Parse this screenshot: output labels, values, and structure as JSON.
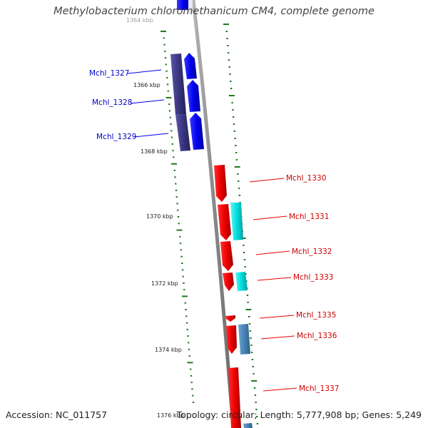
{
  "title": "Methylobacterium chloromethanicum CM4, complete genome",
  "accession_text": "Accession: NC_011757",
  "topology_text": "Topology: circular; Length: 5,777,908 bp; Genes: 5,249",
  "colors": {
    "backbone": "#8c8c8c",
    "tick": "#1e7a1e",
    "forward_gene": "#0000ee",
    "forward_dark": "#3a3680",
    "reverse_gene": "#ee0000",
    "cyan_gene": "#00dddd",
    "steelblue_gene": "#4682b4"
  },
  "scale_labels": [
    {
      "text": "1364 kbp"
    },
    {
      "text": "1366 kbp"
    },
    {
      "text": "1368 kbp"
    },
    {
      "text": "1370 kbp"
    },
    {
      "text": "1372 kbp"
    },
    {
      "text": "1374 kbp"
    },
    {
      "text": "1376 kbp"
    }
  ],
  "gene_labels": [
    {
      "text": "Mchl_1327",
      "strand": "forward"
    },
    {
      "text": "Mchl_1328",
      "strand": "forward"
    },
    {
      "text": "Mchl_1329",
      "strand": "forward"
    },
    {
      "text": "Mchl_1330",
      "strand": "reverse"
    },
    {
      "text": "Mchl_1331",
      "strand": "reverse"
    },
    {
      "text": "Mchl_1332",
      "strand": "reverse"
    },
    {
      "text": "Mchl_1333",
      "strand": "reverse"
    },
    {
      "text": "Mchl_1335",
      "strand": "reverse"
    },
    {
      "text": "Mchl_1336",
      "strand": "reverse"
    },
    {
      "text": "Mchl_1337",
      "strand": "reverse"
    }
  ]
}
